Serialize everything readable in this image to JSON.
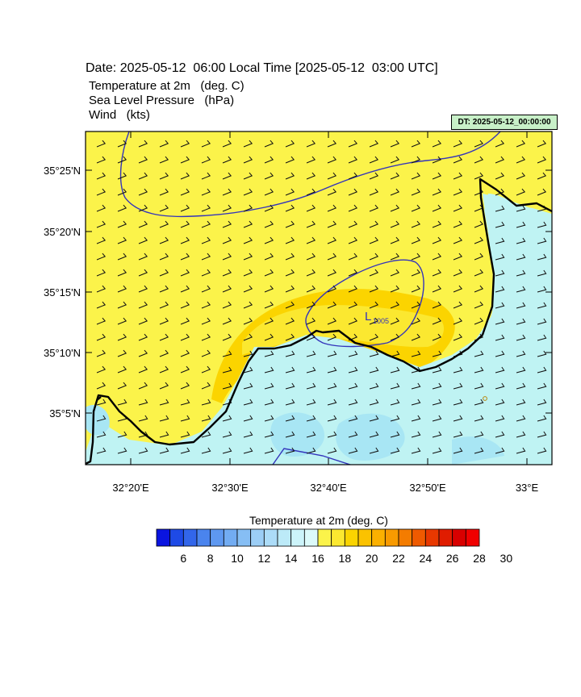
{
  "header": {
    "date_line": "Date: 2025-05-12  06:00 Local Time [2025-05-12  03:00 UTC]",
    "fields": [
      "Temperature at 2m   (deg. C)",
      "Sea Level Pressure   (hPa)",
      "Wind   (kts)"
    ],
    "dt_badge": "DT: 2025-05-12_00:00:00"
  },
  "map": {
    "lat_ticks": [
      "35°25'N",
      "35°20'N",
      "35°15'N",
      "35°10'N",
      "35°5'N"
    ],
    "lon_ticks": [
      "32°20'E",
      "32°30'E",
      "32°40'E",
      "32°50'E",
      "33°E"
    ],
    "low_marker": {
      "symbol": "L",
      "value": "1005"
    },
    "land_color": "#fbf34a",
    "sea_color": "#bff3f3",
    "warm_color": "#fbd400",
    "isobar_color": "#3333bb",
    "coast_color": "#000000"
  },
  "colorbar": {
    "title": "Temperature at 2m  (deg. C)",
    "labels": [
      "6",
      "8",
      "10",
      "12",
      "14",
      "16",
      "18",
      "20",
      "22",
      "24",
      "26",
      "28",
      "30"
    ],
    "colors": [
      "#0a14e0",
      "#1e4ae6",
      "#3266ea",
      "#4a84ee",
      "#5e98f0",
      "#72acf2",
      "#86bef4",
      "#9ccef6",
      "#acdcf8",
      "#bceaf8",
      "#ccf4fa",
      "#dcfafa",
      "#fbf34a",
      "#fbe830",
      "#fbd400",
      "#fbc200",
      "#fbb000",
      "#f89a00",
      "#f47c00",
      "#ef5a00",
      "#e83800",
      "#e01c00",
      "#d80000",
      "#f00000"
    ]
  }
}
